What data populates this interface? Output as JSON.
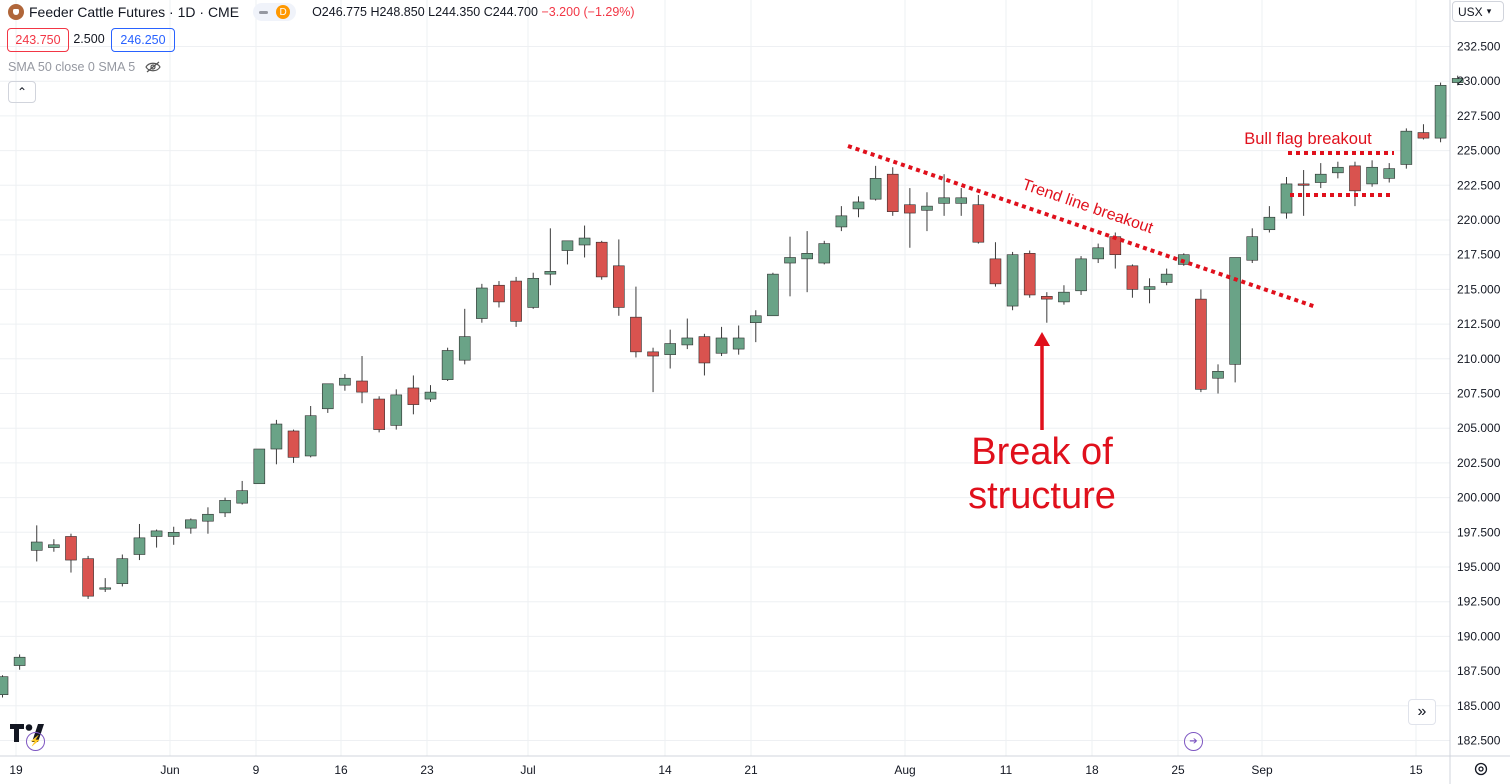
{
  "header": {
    "title": "Feeder Cattle Futures · 1D · CME",
    "interval_badge": "D",
    "ohlc": "O246.775 H248.850 L244.350 C244.700",
    "change": "−3.200 (−1.29%)"
  },
  "trade": {
    "sell": "243.750",
    "spread": "2.500",
    "buy": "246.250"
  },
  "indicator": {
    "label": "SMA 50 close 0 SMA 5"
  },
  "currency": {
    "label": "USX"
  },
  "icons": {
    "logo": "cattle-symbol-icon",
    "eye": "eye-hidden-icon",
    "collapse": "chevron-up-icon",
    "goto": "double-chevron-right-icon",
    "settings": "gear-icon",
    "tv": "tradingview-logo-icon",
    "events": "flash-event-icon",
    "dividends": "arrow-event-icon"
  },
  "colors": {
    "up": "#6aa387",
    "down": "#d9534f",
    "annotation": "#e0101c",
    "grid": "#eef0f3"
  },
  "chart_data": {
    "type": "candlestick",
    "ylim": [
      181.5,
      233.5
    ],
    "y_ticks": [
      "232.500",
      "230.000",
      "227.500",
      "225.000",
      "222.500",
      "220.000",
      "217.500",
      "215.000",
      "212.500",
      "210.000",
      "207.500",
      "205.000",
      "202.500",
      "200.000",
      "197.500",
      "195.000",
      "192.500",
      "190.000",
      "187.500",
      "185.000",
      "182.500"
    ],
    "x_labels": [
      "19",
      "Jun",
      "9",
      "16",
      "23",
      "Jul",
      "14",
      "21",
      "Aug",
      "11",
      "18",
      "25",
      "Sep",
      "15"
    ],
    "candles": [
      {
        "o": 185.8,
        "h": 187.2,
        "l": 185.6,
        "c": 187.1
      },
      {
        "o": 187.9,
        "h": 188.7,
        "l": 187.6,
        "c": 188.5
      },
      {
        "o": 196.2,
        "h": 198.0,
        "l": 195.4,
        "c": 196.8
      },
      {
        "o": 196.4,
        "h": 197.0,
        "l": 196.1,
        "c": 196.6
      },
      {
        "o": 197.2,
        "h": 197.4,
        "l": 194.6,
        "c": 195.5
      },
      {
        "o": 195.6,
        "h": 195.8,
        "l": 192.7,
        "c": 192.9
      },
      {
        "o": 193.4,
        "h": 194.2,
        "l": 193.2,
        "c": 193.5
      },
      {
        "o": 193.8,
        "h": 195.9,
        "l": 193.6,
        "c": 195.6
      },
      {
        "o": 195.9,
        "h": 198.1,
        "l": 195.5,
        "c": 197.1
      },
      {
        "o": 197.2,
        "h": 197.7,
        "l": 196.4,
        "c": 197.6
      },
      {
        "o": 197.2,
        "h": 197.9,
        "l": 196.6,
        "c": 197.5
      },
      {
        "o": 197.8,
        "h": 198.5,
        "l": 197.4,
        "c": 198.4
      },
      {
        "o": 198.3,
        "h": 199.3,
        "l": 197.4,
        "c": 198.8
      },
      {
        "o": 198.9,
        "h": 200.0,
        "l": 198.6,
        "c": 199.8
      },
      {
        "o": 199.6,
        "h": 201.2,
        "l": 199.5,
        "c": 200.5
      },
      {
        "o": 201.0,
        "h": 203.5,
        "l": 201.0,
        "c": 203.5
      },
      {
        "o": 203.5,
        "h": 205.6,
        "l": 202.4,
        "c": 205.3
      },
      {
        "o": 204.8,
        "h": 204.9,
        "l": 202.5,
        "c": 202.9
      },
      {
        "o": 203.0,
        "h": 206.6,
        "l": 202.9,
        "c": 205.9
      },
      {
        "o": 206.4,
        "h": 208.2,
        "l": 206.1,
        "c": 208.2
      },
      {
        "o": 208.1,
        "h": 208.9,
        "l": 207.7,
        "c": 208.6
      },
      {
        "o": 208.4,
        "h": 210.2,
        "l": 206.8,
        "c": 207.6
      },
      {
        "o": 207.1,
        "h": 207.3,
        "l": 204.7,
        "c": 204.9
      },
      {
        "o": 205.2,
        "h": 207.8,
        "l": 204.9,
        "c": 207.4
      },
      {
        "o": 207.9,
        "h": 208.8,
        "l": 206.0,
        "c": 206.7
      },
      {
        "o": 207.1,
        "h": 208.1,
        "l": 206.9,
        "c": 207.6
      },
      {
        "o": 208.5,
        "h": 210.8,
        "l": 208.4,
        "c": 210.6
      },
      {
        "o": 209.9,
        "h": 213.6,
        "l": 209.6,
        "c": 211.6
      },
      {
        "o": 212.9,
        "h": 215.4,
        "l": 212.6,
        "c": 215.1
      },
      {
        "o": 215.3,
        "h": 215.6,
        "l": 213.7,
        "c": 214.1
      },
      {
        "o": 215.6,
        "h": 215.9,
        "l": 212.3,
        "c": 212.7
      },
      {
        "o": 213.7,
        "h": 216.2,
        "l": 213.6,
        "c": 215.8
      },
      {
        "o": 216.1,
        "h": 219.4,
        "l": 215.3,
        "c": 216.3
      },
      {
        "o": 217.8,
        "h": 218.4,
        "l": 216.8,
        "c": 218.5
      },
      {
        "o": 218.2,
        "h": 219.6,
        "l": 217.3,
        "c": 218.7
      },
      {
        "o": 218.4,
        "h": 218.5,
        "l": 215.7,
        "c": 215.9
      },
      {
        "o": 216.7,
        "h": 218.6,
        "l": 213.1,
        "c": 213.7
      },
      {
        "o": 213.0,
        "h": 215.2,
        "l": 210.1,
        "c": 210.5
      },
      {
        "o": 210.5,
        "h": 210.8,
        "l": 207.6,
        "c": 210.2
      },
      {
        "o": 210.3,
        "h": 212.1,
        "l": 209.3,
        "c": 211.1
      },
      {
        "o": 211.0,
        "h": 212.9,
        "l": 210.7,
        "c": 211.5
      },
      {
        "o": 211.6,
        "h": 211.8,
        "l": 208.8,
        "c": 209.7
      },
      {
        "o": 210.4,
        "h": 212.3,
        "l": 210.2,
        "c": 211.5
      },
      {
        "o": 210.7,
        "h": 212.4,
        "l": 210.3,
        "c": 211.5
      },
      {
        "o": 212.6,
        "h": 213.5,
        "l": 211.2,
        "c": 213.1
      },
      {
        "o": 213.1,
        "h": 216.2,
        "l": 213.1,
        "c": 216.1
      },
      {
        "o": 216.9,
        "h": 218.8,
        "l": 214.5,
        "c": 217.3
      },
      {
        "o": 217.2,
        "h": 219.2,
        "l": 214.8,
        "c": 217.6
      },
      {
        "o": 216.9,
        "h": 218.5,
        "l": 216.8,
        "c": 218.3
      },
      {
        "o": 219.5,
        "h": 221.0,
        "l": 219.2,
        "c": 220.3
      },
      {
        "o": 220.8,
        "h": 221.7,
        "l": 220.2,
        "c": 221.3
      },
      {
        "o": 221.5,
        "h": 223.9,
        "l": 221.4,
        "c": 223.0
      },
      {
        "o": 223.3,
        "h": 223.8,
        "l": 220.3,
        "c": 220.6
      },
      {
        "o": 221.1,
        "h": 222.3,
        "l": 218.0,
        "c": 220.5
      },
      {
        "o": 220.7,
        "h": 222.0,
        "l": 219.2,
        "c": 221.0
      },
      {
        "o": 221.2,
        "h": 223.3,
        "l": 220.3,
        "c": 221.6
      },
      {
        "o": 221.2,
        "h": 222.3,
        "l": 220.3,
        "c": 221.6
      },
      {
        "o": 221.1,
        "h": 221.8,
        "l": 218.3,
        "c": 218.4
      },
      {
        "o": 217.2,
        "h": 218.4,
        "l": 215.2,
        "c": 215.4
      },
      {
        "o": 213.8,
        "h": 217.7,
        "l": 213.5,
        "c": 217.5
      },
      {
        "o": 217.6,
        "h": 217.8,
        "l": 214.4,
        "c": 214.6
      },
      {
        "o": 214.5,
        "h": 214.8,
        "l": 212.6,
        "c": 214.3
      },
      {
        "o": 214.1,
        "h": 215.3,
        "l": 213.9,
        "c": 214.8
      },
      {
        "o": 214.9,
        "h": 217.4,
        "l": 214.6,
        "c": 217.2
      },
      {
        "o": 217.2,
        "h": 218.3,
        "l": 216.9,
        "c": 218.0
      },
      {
        "o": 218.8,
        "h": 219.1,
        "l": 216.5,
        "c": 217.5
      },
      {
        "o": 216.7,
        "h": 216.8,
        "l": 214.4,
        "c": 215.0
      },
      {
        "o": 215.0,
        "h": 215.8,
        "l": 214.0,
        "c": 215.2
      },
      {
        "o": 215.5,
        "h": 216.5,
        "l": 215.3,
        "c": 216.1
      },
      {
        "o": 216.8,
        "h": 217.6,
        "l": 216.7,
        "c": 217.5
      },
      {
        "o": 214.3,
        "h": 215.0,
        "l": 207.6,
        "c": 207.8
      },
      {
        "o": 208.6,
        "h": 209.6,
        "l": 207.5,
        "c": 209.1
      },
      {
        "o": 209.6,
        "h": 217.3,
        "l": 208.3,
        "c": 217.3
      },
      {
        "o": 217.1,
        "h": 219.4,
        "l": 216.9,
        "c": 218.8
      },
      {
        "o": 219.3,
        "h": 221.0,
        "l": 219.1,
        "c": 220.2
      },
      {
        "o": 220.5,
        "h": 223.1,
        "l": 220.1,
        "c": 222.6
      },
      {
        "o": 222.6,
        "h": 223.6,
        "l": 220.3,
        "c": 222.5
      },
      {
        "o": 222.7,
        "h": 224.1,
        "l": 222.3,
        "c": 223.3
      },
      {
        "o": 223.4,
        "h": 224.2,
        "l": 223.0,
        "c": 223.8
      },
      {
        "o": 223.9,
        "h": 224.2,
        "l": 221.0,
        "c": 222.1
      },
      {
        "o": 222.6,
        "h": 224.3,
        "l": 222.4,
        "c": 223.8
      },
      {
        "o": 223.0,
        "h": 224.1,
        "l": 222.7,
        "c": 223.7
      },
      {
        "o": 224.0,
        "h": 226.6,
        "l": 223.7,
        "c": 226.4
      },
      {
        "o": 226.3,
        "h": 226.9,
        "l": 225.8,
        "c": 225.9
      },
      {
        "o": 225.9,
        "h": 229.9,
        "l": 225.6,
        "c": 229.7
      },
      {
        "o": 229.9,
        "h": 230.4,
        "l": 229.7,
        "c": 230.2
      }
    ],
    "annotations": {
      "trend_label": "Trend line breakout",
      "bull_flag_label": "Bull flag breakout",
      "bos_label_line1": "Break of",
      "bos_label_line2": "structure"
    }
  }
}
